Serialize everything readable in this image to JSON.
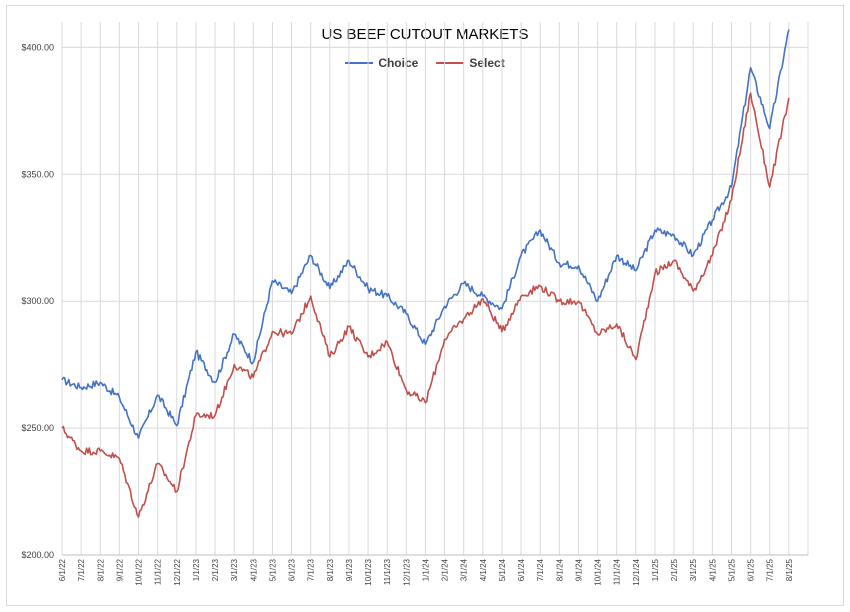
{
  "chart_data": {
    "type": "line",
    "title": "US BEEF CUTOUT MARKETS",
    "xlabel": "",
    "ylabel": "",
    "ylim": [
      200,
      410
    ],
    "y_ticks": [
      "$200.00",
      "$250.00",
      "$300.00",
      "$350.00",
      "$400.00"
    ],
    "y_tick_values": [
      200,
      250,
      300,
      350,
      400
    ],
    "x_ticks": [
      "6/1/22",
      "7/1/22",
      "8/1/22",
      "9/1/22",
      "10/1/22",
      "11/1/22",
      "12/1/22",
      "1/1/23",
      "2/1/23",
      "3/1/23",
      "4/1/23",
      "5/1/23",
      "6/1/23",
      "7/1/23",
      "8/1/23",
      "9/1/23",
      "10/1/23",
      "11/1/23",
      "12/1/23",
      "1/1/24",
      "2/1/24",
      "3/1/24",
      "4/1/24",
      "5/1/24",
      "6/1/24",
      "7/1/24",
      "8/1/24",
      "9/1/24",
      "10/1/24",
      "11/1/24",
      "12/1/24",
      "1/1/25",
      "2/1/25",
      "3/1/25",
      "4/1/25",
      "5/1/25",
      "6/1/25",
      "7/1/25",
      "8/1/25"
    ],
    "grid": "vertical",
    "legend_position": "top",
    "x": [
      "2022-06",
      "2022-07",
      "2022-08",
      "2022-09",
      "2022-10",
      "2022-11",
      "2022-12",
      "2023-01",
      "2023-02",
      "2023-03",
      "2023-04",
      "2023-05",
      "2023-06",
      "2023-07",
      "2023-08",
      "2023-09",
      "2023-10",
      "2023-11",
      "2023-12",
      "2024-01",
      "2024-02",
      "2024-03",
      "2024-04",
      "2024-05",
      "2024-06",
      "2024-07",
      "2024-08",
      "2024-09",
      "2024-10",
      "2024-11",
      "2024-12",
      "2025-01",
      "2025-02",
      "2025-03",
      "2025-04",
      "2025-05",
      "2025-06",
      "2025-07",
      "2025-08"
    ],
    "series": [
      {
        "name": "Choice",
        "color": "#4472c4",
        "values": [
          269,
          266,
          268,
          262,
          246,
          263,
          251,
          280,
          268,
          287,
          276,
          308,
          303,
          318,
          305,
          316,
          305,
          302,
          295,
          283,
          298,
          307,
          302,
          297,
          318,
          328,
          315,
          314,
          300,
          318,
          312,
          328,
          326,
          318,
          332,
          345,
          392,
          368,
          407
        ]
      },
      {
        "name": "Select",
        "color": "#c0504d",
        "values": [
          250,
          241,
          241,
          238,
          215,
          236,
          225,
          255,
          255,
          275,
          270,
          288,
          287,
          302,
          278,
          290,
          278,
          284,
          265,
          260,
          285,
          293,
          301,
          288,
          302,
          306,
          300,
          300,
          287,
          291,
          277,
          311,
          316,
          304,
          318,
          340,
          382,
          345,
          380
        ]
      }
    ]
  }
}
